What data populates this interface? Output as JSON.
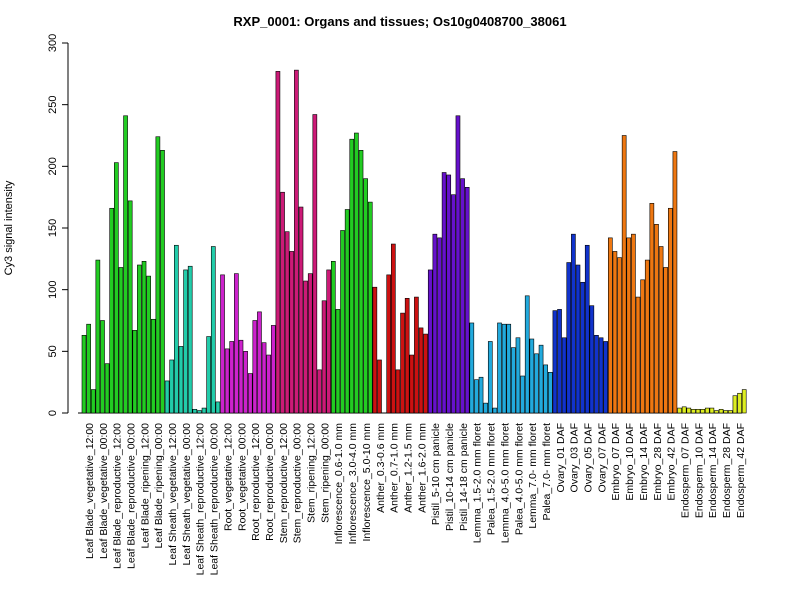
{
  "chart_data": {
    "type": "bar",
    "title": "RXP_0001: Organs and tissues; Os10g0408700_38061",
    "ylabel": "Cy3 signal intensity",
    "xlabel": "",
    "ylim": [
      0,
      300
    ],
    "yticks": [
      0,
      50,
      100,
      150,
      200,
      250,
      300
    ],
    "grid": false,
    "categories": [
      "Leaf Blade_vegetative_12:00",
      "Leaf Blade_vegetative_00:00",
      "Leaf Blade_reproductive_12:00",
      "Leaf Blade_reproductive_00:00",
      "Leaf Blade_ripening_12:00",
      "Leaf Blade_ripening_00:00",
      "Leaf Sheath_vegetative_12:00",
      "Leaf Sheath_vegetative_00:00",
      "Leaf Sheath_reproductive_12:00",
      "Leaf Sheath_reproductive_00:00",
      "Root_vegetative_12:00",
      "Root_vegetative_00:00",
      "Root_reproductive_12:00",
      "Root_reproductive_00:00",
      "Stem_reproductive_12:00",
      "Stem_reproductive_00:00",
      "Stem_ripening_12:00",
      "Stem_ripening_00:00",
      "Inflorescence_0.6-1.0 mm",
      "Inflorescence_3.0-4.0 mm",
      "Inflorescence_5.0-10 mm",
      "Anther_0.3-0.6 mm",
      "Anther_0.7-1.0 mm",
      "Anther_1.2-1.5 mm",
      "Anther_1.6-2.0 mm",
      "Pistil_5-10 cm panicle",
      "Pistil_10-14 cm panicle",
      "Pistil_14-18 cm panicle",
      "Lemma_1.5-2.0 mm floret",
      "Palea_1.5-2.0 mm floret",
      "Lemma_4.0-5.0 mm floret",
      "Palea_4.0-5.0 mm floret",
      "Lemma_7.0- mm floret",
      "Palea_7.0- mm floret",
      "Ovary_01 DAF",
      "Ovary_03 DAF",
      "Ovary_05 DAF",
      "Ovary_07 DAF",
      "Embryo_07 DAF",
      "Embryo_10 DAF",
      "Embryo_14 DAF",
      "Embryo_28 DAF",
      "Embryo_42 DAF",
      "Endosperm_07 DAF",
      "Endosperm_10 DAF",
      "Endosperm_14 DAF",
      "Endosperm_28 DAF",
      "Endosperm_42 DAF"
    ],
    "values": [
      [
        63,
        72,
        19
      ],
      [
        124,
        75,
        40
      ],
      [
        166,
        203,
        118
      ],
      [
        241,
        172,
        67
      ],
      [
        120,
        123,
        111
      ],
      [
        76,
        224,
        213
      ],
      [
        26,
        43,
        136
      ],
      [
        54,
        116,
        119
      ],
      [
        3,
        2,
        4
      ],
      [
        62,
        135,
        9
      ],
      [
        112,
        52,
        58
      ],
      [
        113,
        59,
        50
      ],
      [
        32,
        75,
        82
      ],
      [
        57,
        47,
        71
      ],
      [
        277,
        179,
        147
      ],
      [
        131,
        278,
        167
      ],
      [
        107,
        113,
        242
      ],
      [
        35,
        91,
        116
      ],
      [
        123,
        84,
        148
      ],
      [
        165,
        222,
        227
      ],
      [
        213,
        190,
        171
      ],
      [
        102,
        43,
        0
      ],
      [
        112,
        137,
        35
      ],
      [
        81,
        93,
        47
      ],
      [
        94,
        69,
        64
      ],
      [
        116,
        145,
        142
      ],
      [
        195,
        193,
        177
      ],
      [
        241,
        190,
        183
      ],
      [
        73,
        27,
        29
      ],
      [
        8,
        58,
        4
      ],
      [
        73,
        72,
        72
      ],
      [
        53,
        61,
        30
      ],
      [
        95,
        60,
        48
      ],
      [
        55,
        39,
        33
      ],
      [
        83,
        84,
        61
      ],
      [
        122,
        145,
        120
      ],
      [
        106,
        136,
        87
      ],
      [
        63,
        61,
        58
      ],
      [
        142,
        131,
        126
      ],
      [
        225,
        142,
        145
      ],
      [
        94,
        108,
        124
      ],
      [
        170,
        153,
        135
      ],
      [
        118,
        166,
        212
      ],
      [
        4,
        5,
        4
      ],
      [
        3,
        3,
        3
      ],
      [
        4,
        4,
        2
      ],
      [
        3,
        2,
        2
      ],
      [
        14,
        16,
        19
      ]
    ],
    "bar_colors": [
      "#22cc22",
      "#22cc22",
      "#22cc22",
      "#22cc22",
      "#22cc22",
      "#22cc22",
      "#22ccaa",
      "#22ccaa",
      "#22ccaa",
      "#22ccaa",
      "#cc22cc",
      "#cc22cc",
      "#cc22cc",
      "#cc22cc",
      "#cc1a77",
      "#cc1a77",
      "#cc1a77",
      "#cc1a77",
      "#22cc22",
      "#22cc22",
      "#22cc22",
      "#cc1111",
      "#cc1111",
      "#cc1111",
      "#cc1111",
      "#6611cc",
      "#6611cc",
      "#6611cc",
      "#22aadd",
      "#22aadd",
      "#22aadd",
      "#22aadd",
      "#22aadd",
      "#22aadd",
      "#1133cc",
      "#1133cc",
      "#1133cc",
      "#1133cc",
      "#ee7711",
      "#ee7711",
      "#ee7711",
      "#ee7711",
      "#ee7711",
      "#ddee22",
      "#ddee22",
      "#ddee22",
      "#ddee22",
      "#ddee22"
    ],
    "label_every": 1
  }
}
